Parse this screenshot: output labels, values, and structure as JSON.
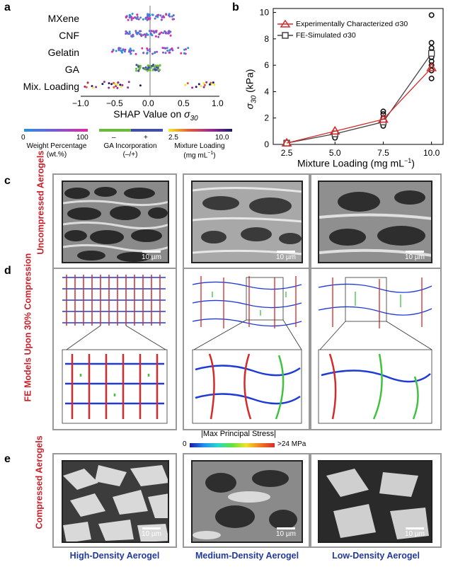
{
  "panels": {
    "a": "a",
    "b": "b",
    "c": "c",
    "d": "d",
    "e": "e"
  },
  "panel_a": {
    "features": [
      "MXene",
      "CNF",
      "Gelatin",
      "GA",
      "Mix. Loading"
    ],
    "x_ticks": [
      "−1.0",
      "−0.5",
      "0.0",
      "0.5",
      "1.0"
    ],
    "xlabel": "SHAP Value on σ30",
    "legends": [
      {
        "min": "0",
        "max": "100",
        "title": "Weight Percentage",
        "unit": "(wt.%)"
      },
      {
        "min": "–",
        "max": "+",
        "title": "GA Incorporation",
        "unit": "(–/+)"
      },
      {
        "min": "2.5",
        "max": "10.0",
        "title": "Mixture Loading",
        "unit": "(mg mL−1)"
      }
    ]
  },
  "chart_data": {
    "type": "line",
    "x": [
      2.5,
      5.0,
      7.5,
      10.0
    ],
    "series": [
      {
        "name": "Experimentally Characterized σ30",
        "values": [
          0.1,
          1.0,
          1.9,
          5.8
        ],
        "color": "#d62a2a"
      },
      {
        "name": "FE-Simulated σ30",
        "values": [
          0.1,
          0.8,
          1.7,
          6.9
        ],
        "color": "#444444"
      }
    ],
    "scatter": [
      {
        "x": 5.0,
        "y": 0.5
      },
      {
        "x": 5.0,
        "y": 0.8
      },
      {
        "x": 7.5,
        "y": 1.4
      },
      {
        "x": 7.5,
        "y": 1.7
      },
      {
        "x": 7.5,
        "y": 2.0
      },
      {
        "x": 7.5,
        "y": 2.3
      },
      {
        "x": 7.5,
        "y": 2.5
      },
      {
        "x": 10.0,
        "y": 5.0
      },
      {
        "x": 10.0,
        "y": 5.6
      },
      {
        "x": 10.0,
        "y": 6.0
      },
      {
        "x": 10.0,
        "y": 6.3
      },
      {
        "x": 10.0,
        "y": 6.6
      },
      {
        "x": 10.0,
        "y": 7.0
      },
      {
        "x": 10.0,
        "y": 7.3
      },
      {
        "x": 10.0,
        "y": 7.7
      },
      {
        "x": 10.0,
        "y": 9.8
      }
    ],
    "x_ticks": [
      "2.5",
      "5.0",
      "7.5",
      "10.0"
    ],
    "y_ticks": [
      "0",
      "2",
      "4",
      "6",
      "8",
      "10"
    ],
    "xlabel": "Mixture Loading (mg mL−1)",
    "ylabel": "σ30 (kPa)",
    "xlim": [
      1.8,
      10.6
    ],
    "ylim": [
      0,
      10.3
    ]
  },
  "rows": {
    "c": "Uncompressed Aerogels",
    "d": "FE Models Upon 30% Compression",
    "e": "Compressed Aerogels"
  },
  "scale_bar": "10 µm",
  "stress_legend": {
    "title": "|Max Principal Stress|",
    "min": "0",
    "max": ">24 MPa"
  },
  "columns": [
    "High-Density Aerogel",
    "Medium-Density Aerogel",
    "Low-Density Aerogel"
  ]
}
